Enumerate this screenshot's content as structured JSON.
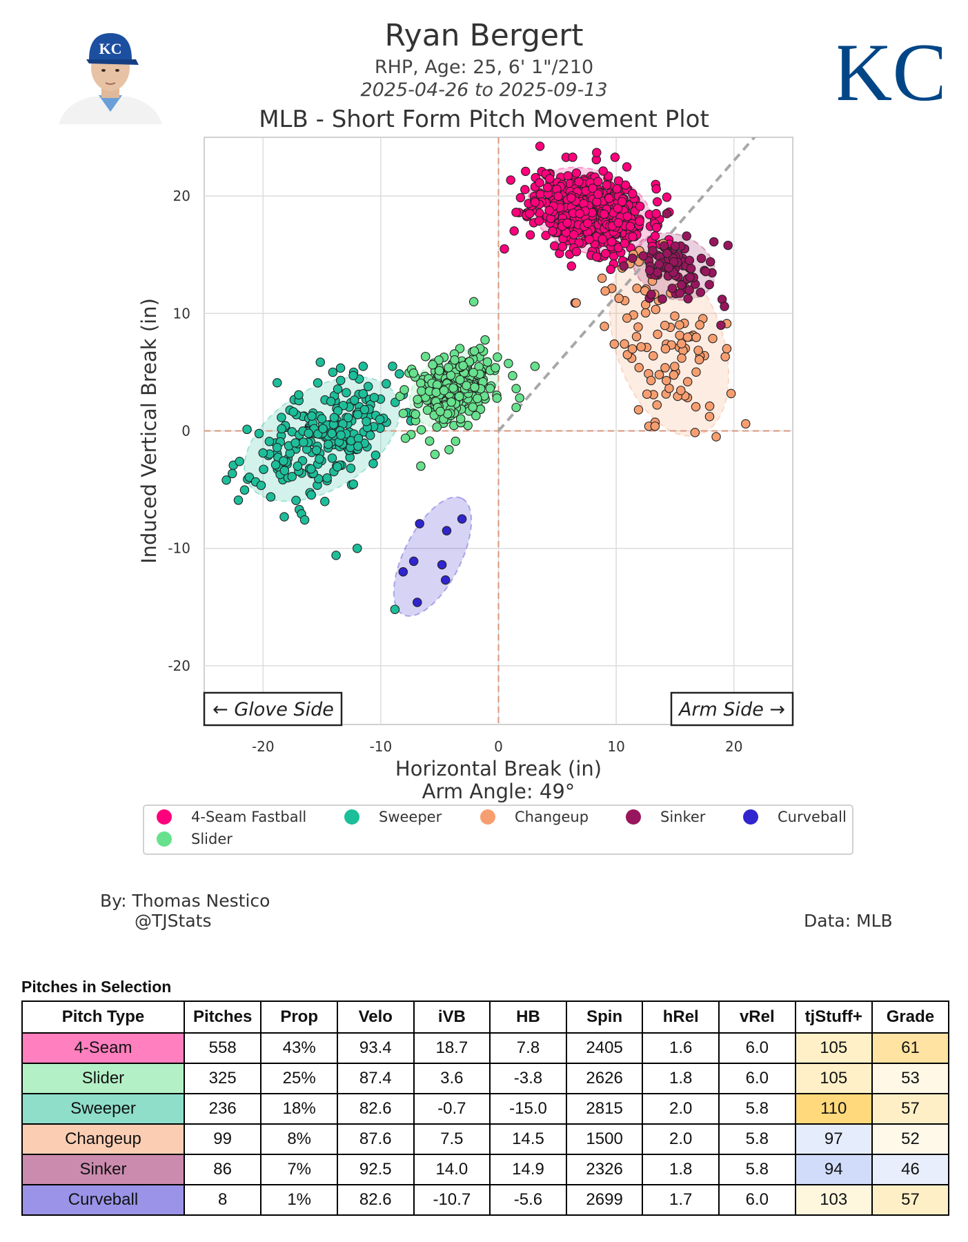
{
  "header": {
    "name": "Ryan Bergert",
    "bio": "RHP, Age: 25, 6' 1\"/210",
    "date_range": "2025-04-26 to 2025-09-13",
    "plot_title": "MLB - Short Form Pitch Movement Plot"
  },
  "logo": {
    "text": "KC",
    "color": "#004687"
  },
  "credits": {
    "by": "By: Thomas Nestico",
    "handle": "@TJStats",
    "data": "Data: MLB"
  },
  "chart_data": {
    "type": "scatter",
    "xlabel": "Horizontal Break (in)",
    "ylabel": "Induced Vertical Break (in)",
    "arm_angle_label": "Arm Angle: 49°",
    "arm_angle_deg": 49,
    "xlim": [
      -25,
      25
    ],
    "ylim": [
      -25,
      25
    ],
    "x_ticks": [
      -20,
      -10,
      0,
      10,
      20
    ],
    "y_ticks": [
      -20,
      -10,
      0,
      10,
      20
    ],
    "grid": true,
    "legend_position": "bottom",
    "annotations": {
      "glove_side": "← Glove Side",
      "arm_side": "Arm Side →"
    },
    "series": [
      {
        "name": "4-Seam Fastball",
        "color": "#FF007D",
        "mean": [
          7.8,
          18.7
        ],
        "sd": [
          2.4,
          1.7
        ],
        "rho": -0.25,
        "n": 558,
        "seed": 11,
        "points": [
          [
            0.5,
            15.5
          ],
          [
            6.3,
            23.3
          ],
          [
            9.9,
            23.3
          ],
          [
            2.3,
            22.1
          ],
          [
            6.5,
            10.9
          ],
          [
            9.1,
            15.1
          ],
          [
            13.4,
            18.5
          ],
          [
            14.3,
            19.9
          ],
          [
            13.3,
            16.6
          ]
        ]
      },
      {
        "name": "Sweeper",
        "color": "#1DBE9A",
        "mean": [
          -15.0,
          -0.7
        ],
        "sd": [
          3.0,
          2.4
        ],
        "rho": 0.45,
        "n": 236,
        "seed": 23,
        "points": [
          [
            -22.1,
            -5.9
          ],
          [
            -13.8,
            -10.6
          ],
          [
            -12.0,
            -10.0
          ],
          [
            -8.8,
            -15.2
          ],
          [
            -18.8,
            4.1
          ],
          [
            -9.0,
            5.5
          ],
          [
            -11.5,
            5.5
          ],
          [
            -22.0,
            -2.6
          ]
        ]
      },
      {
        "name": "Changeup",
        "color": "#F79E70",
        "mean": [
          14.5,
          7.5
        ],
        "sd": [
          2.3,
          3.6
        ],
        "rho": -0.35,
        "n": 99,
        "seed": 37,
        "points": [
          [
            6.6,
            10.9
          ],
          [
            8.8,
            13.0
          ],
          [
            9.0,
            8.9
          ],
          [
            21.0,
            0.6
          ],
          [
            11.9,
            1.8
          ],
          [
            13.3,
            0.4
          ],
          [
            19.4,
            7.0
          ],
          [
            10.7,
            7.4
          ]
        ]
      },
      {
        "name": "Sinker",
        "color": "#98165D",
        "mean": [
          14.9,
          14.0
        ],
        "sd": [
          1.6,
          1.3
        ],
        "rho": -0.2,
        "n": 86,
        "seed": 53,
        "points": [
          [
            19.5,
            15.8
          ],
          [
            19.0,
            11.2
          ],
          [
            18.3,
            16.1
          ],
          [
            18.9,
            9.0
          ],
          [
            14.3,
            18.5
          ],
          [
            12.3,
            14.9
          ],
          [
            19.2,
            10.6
          ]
        ]
      },
      {
        "name": "Curveball",
        "color": "#3025CE",
        "mean": [
          -5.6,
          -10.7
        ],
        "sd": [
          1.5,
          2.3
        ],
        "rho": 0.6,
        "n": 8,
        "seed": 7,
        "points": [
          [
            -6.7,
            -7.9
          ],
          [
            -4.4,
            -8.5
          ],
          [
            -3.1,
            -7.5
          ],
          [
            -7.2,
            -11.1
          ],
          [
            -4.8,
            -11.4
          ],
          [
            -8.1,
            -12.0
          ],
          [
            -4.5,
            -12.7
          ],
          [
            -6.9,
            -14.6
          ]
        ]
      },
      {
        "name": "Slider",
        "color": "#67E18D",
        "mean": [
          -3.8,
          3.6
        ],
        "sd": [
          1.7,
          1.5
        ],
        "rho": 0.3,
        "n": 325,
        "seed": 71,
        "points": [
          [
            -2.1,
            11.0
          ],
          [
            1.2,
            4.7
          ],
          [
            3.1,
            5.5
          ],
          [
            1.5,
            3.6
          ],
          [
            -8.0,
            3.5
          ],
          [
            -5.4,
            -2.0
          ],
          [
            -6.6,
            -3.0
          ],
          [
            -4.2,
            -1.6
          ],
          [
            1.5,
            2.0
          ],
          [
            1.8,
            2.8
          ]
        ]
      }
    ],
    "legend": [
      {
        "label": "4-Seam Fastball",
        "color": "#FF007D"
      },
      {
        "label": "Sweeper",
        "color": "#1DBE9A"
      },
      {
        "label": "Changeup",
        "color": "#F79E70"
      },
      {
        "label": "Sinker",
        "color": "#98165D"
      },
      {
        "label": "Curveball",
        "color": "#3025CE"
      },
      {
        "label": "Slider",
        "color": "#67E18D"
      }
    ]
  },
  "table": {
    "title": "Pitches in Selection",
    "columns": [
      "Pitch Type",
      "Pitches",
      "Prop",
      "Velo",
      "iVB",
      "HB",
      "Spin",
      "hRel",
      "vRel",
      "tjStuff+",
      "Grade"
    ],
    "rows": [
      {
        "type": "4-Seam",
        "type_color": "#FF7FBF",
        "values": [
          "558",
          "43%",
          "93.4",
          "18.7",
          "7.8",
          "2405",
          "1.6",
          "6.0"
        ],
        "stuff": "105",
        "stuff_color": "#FFF0C8",
        "grade": "61",
        "grade_color": "#FFE3A2"
      },
      {
        "type": "Slider",
        "type_color": "#B3F0C6",
        "values": [
          "325",
          "25%",
          "87.4",
          "3.6",
          "-3.8",
          "2626",
          "1.8",
          "6.0"
        ],
        "stuff": "105",
        "stuff_color": "#FFF0C8",
        "grade": "53",
        "grade_color": "#FFF8E6"
      },
      {
        "type": "Sweeper",
        "type_color": "#8EDEC9",
        "values": [
          "236",
          "18%",
          "82.6",
          "-0.7",
          "-15.0",
          "2815",
          "2.0",
          "5.8"
        ],
        "stuff": "110",
        "stuff_color": "#FFD97B",
        "grade": "57",
        "grade_color": "#FFEFC6"
      },
      {
        "type": "Changeup",
        "type_color": "#FBCEB4",
        "values": [
          "99",
          "8%",
          "87.6",
          "7.5",
          "14.5",
          "1500",
          "2.0",
          "5.8"
        ],
        "stuff": "97",
        "stuff_color": "#E5ECFB",
        "grade": "52",
        "grade_color": "#FFF9EA"
      },
      {
        "type": "Sinker",
        "type_color": "#CB8BAE",
        "values": [
          "86",
          "7%",
          "92.5",
          "14.0",
          "14.9",
          "2326",
          "1.8",
          "5.8"
        ],
        "stuff": "94",
        "stuff_color": "#D0DCFA",
        "grade": "46",
        "grade_color": "#E9EEFC"
      },
      {
        "type": "Curveball",
        "type_color": "#9A93E7",
        "values": [
          "8",
          "1%",
          "82.6",
          "-10.7",
          "-5.6",
          "2699",
          "1.7",
          "6.0"
        ],
        "stuff": "103",
        "stuff_color": "#FFF6DE",
        "grade": "57",
        "grade_color": "#FFEFC6"
      }
    ]
  }
}
